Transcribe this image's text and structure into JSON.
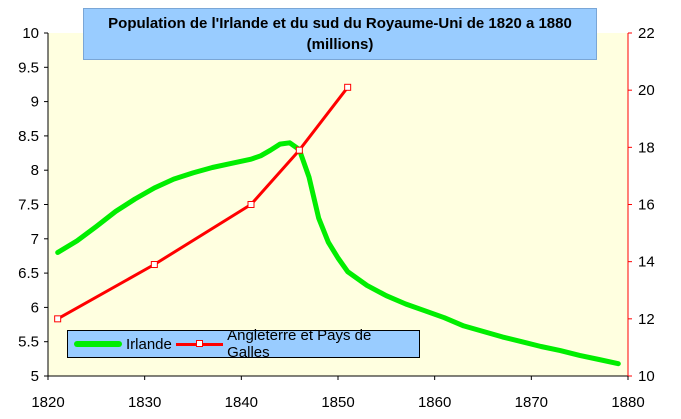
{
  "chart_data": {
    "type": "line",
    "title": "Population de l'Irlande et du sud du Royaume-Uni de 1820 a 1880",
    "subtitle": "(millions)",
    "xlim": [
      1820,
      1880
    ],
    "x_ticks": [
      "1820",
      "1830",
      "1840",
      "1850",
      "1860",
      "1870",
      "1880"
    ],
    "y_left_lim": [
      5,
      10
    ],
    "y_left_ticks": [
      "5",
      "5.5",
      "6",
      "6.5",
      "7",
      "7.5",
      "8",
      "8.5",
      "9",
      "9.5",
      "10"
    ],
    "y_right_lim": [
      10,
      22
    ],
    "y_right_ticks": [
      "10",
      "12",
      "14",
      "16",
      "18",
      "20",
      "22"
    ],
    "grid": false,
    "legend_position": "bottom-left",
    "colors": {
      "plot_background": "#ffffe0",
      "irlande": "#00ee00",
      "angleterre": "#ff0000",
      "right_axis": "#ff0000",
      "title_box": "#99ccff"
    },
    "series": [
      {
        "name": "Irlande",
        "axis": "left",
        "x": [
          1821,
          1823,
          1825,
          1827,
          1829,
          1831,
          1833,
          1835,
          1837,
          1839,
          1841,
          1842,
          1843,
          1844,
          1845,
          1846,
          1847,
          1848,
          1849,
          1850,
          1851,
          1853,
          1855,
          1857,
          1859,
          1861,
          1863,
          1865,
          1867,
          1869,
          1871,
          1873,
          1875,
          1877,
          1879
        ],
        "y": [
          6.8,
          6.97,
          7.18,
          7.4,
          7.58,
          7.74,
          7.87,
          7.96,
          8.04,
          8.1,
          8.16,
          8.21,
          8.29,
          8.38,
          8.4,
          8.3,
          7.9,
          7.3,
          6.95,
          6.72,
          6.52,
          6.32,
          6.17,
          6.05,
          5.95,
          5.85,
          5.73,
          5.65,
          5.57,
          5.5,
          5.43,
          5.37,
          5.3,
          5.24,
          5.18
        ]
      },
      {
        "name": "Angleterre et Pays de Galles",
        "axis": "right",
        "x": [
          1821,
          1831,
          1841,
          1846,
          1851
        ],
        "y": [
          12.0,
          13.9,
          16.0,
          17.9,
          20.1
        ]
      }
    ]
  },
  "legend": {
    "irlande_label": "Irlande",
    "angleterre_label": "Angleterre et Pays de Galles"
  }
}
